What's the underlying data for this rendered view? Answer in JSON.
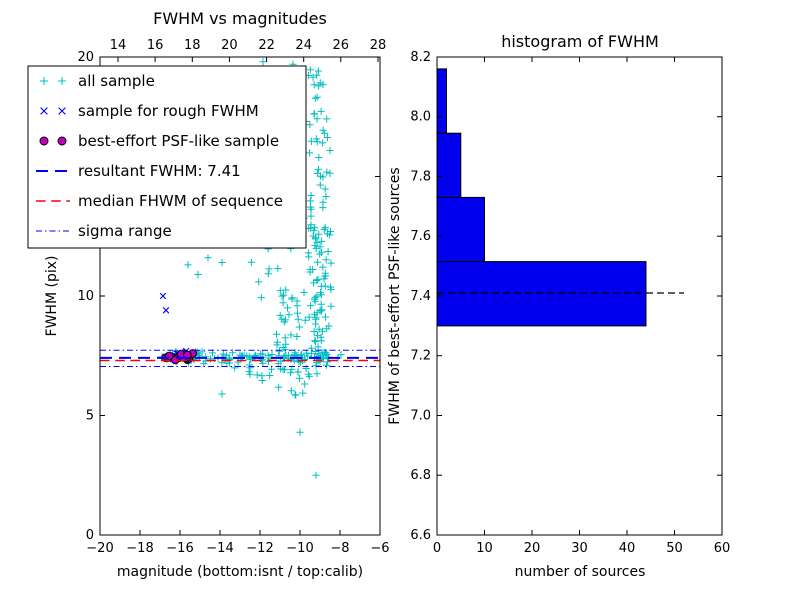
{
  "chart_data": [
    {
      "type": "scatter",
      "title": "FWHM vs magnitudes",
      "xlabel": "magnitude (bottom:isnt / top:calib)",
      "ylabel": "FWHM (pix)",
      "xlim": [
        -20,
        -6
      ],
      "ylim": [
        0,
        20
      ],
      "top_xlim": [
        13.03,
        28.11
      ],
      "xticks": {
        "values": [
          -20,
          -18,
          -16,
          -14,
          -12,
          -10,
          -8,
          -6
        ],
        "labels": [
          "−20",
          "−18",
          "−16",
          "−14",
          "−12",
          "−10",
          "−8",
          "−6"
        ]
      },
      "yticks": {
        "values": [
          0,
          5,
          10,
          15,
          20
        ],
        "labels": [
          "0",
          "5",
          "10",
          "15",
          "20"
        ]
      },
      "top_ticks": {
        "values": [
          14,
          16,
          18,
          20,
          22,
          24,
          26,
          28
        ],
        "labels": [
          "14",
          "16",
          "18",
          "20",
          "22",
          "24",
          "26",
          "28"
        ]
      },
      "series": [
        {
          "name": "all sample",
          "marker": "plus",
          "color": "#00bfbf",
          "clusters": [
            {
              "n": 115,
              "x_u": [
                -16.7,
                -8.55
              ],
              "y_g": [
                7.45,
                0.12
              ]
            },
            {
              "n": 22,
              "x_u": [
                -13.6,
                -8.8
              ],
              "y_u": [
                6.55,
                7.25
              ]
            },
            {
              "n": 7,
              "x_u": [
                -12.8,
                -9.0
              ],
              "y_u": [
                5.7,
                6.5
              ]
            },
            {
              "n": 85,
              "x_g": [
                -9.05,
                0.3
              ],
              "x_clip": [
                -9.9,
                -8.45
              ],
              "y_u": [
                7.0,
                13.2
              ]
            },
            {
              "n": 45,
              "x_g": [
                -9.1,
                0.32
              ],
              "x_clip": [
                -10.0,
                -8.5
              ],
              "y_u": [
                13.2,
                19.9
              ]
            },
            {
              "n": 28,
              "x_u": [
                -11.2,
                -9.8
              ],
              "y_u": [
                7.3,
                10.5
              ]
            },
            {
              "n": 10,
              "x_u": [
                -12.5,
                -10.2
              ],
              "y_u": [
                9.5,
                13.5
              ]
            }
          ],
          "points": [
            [
              -9.2,
              2.5
            ],
            [
              -10.0,
              4.3
            ],
            [
              -13.9,
              5.9
            ],
            [
              -15.6,
              11.3
            ],
            [
              -14.6,
              11.6
            ],
            [
              -13.9,
              11.4
            ],
            [
              -15.1,
              10.9
            ],
            [
              -11.85,
              19.8
            ],
            [
              -10.35,
              19.7
            ],
            [
              -8.1,
              7.4
            ],
            [
              -7.95,
              7.55
            ],
            [
              -16.9,
              7.45
            ],
            [
              -12.15,
              13.0
            ]
          ]
        },
        {
          "name": "sample for rough FWHM",
          "marker": "x",
          "color": "#0000ff",
          "clusters": [
            {
              "n": 13,
              "x_u": [
                -16.35,
                -15.35
              ],
              "y_g": [
                7.5,
                0.09
              ]
            }
          ],
          "points": [
            [
              -16.85,
              10.0
            ],
            [
              -16.7,
              9.4
            ]
          ]
        },
        {
          "name": "best-effort PSF-like sample",
          "marker": "circle",
          "color": "#bf00bf",
          "edge_color": "#000000",
          "clusters": [
            {
              "n": 24,
              "x_g": [
                -16.0,
                0.33
              ],
              "x_clip": [
                -16.75,
                -15.25
              ],
              "y_g": [
                7.46,
                0.06
              ]
            }
          ],
          "points": []
        }
      ],
      "hlines": [
        {
          "label": "resultant FWHM: 7.41",
          "y": 7.41,
          "color": "#0000ff",
          "style": "dashed",
          "width": 2
        },
        {
          "label": "median FHWM of sequence",
          "y": 7.3,
          "color": "#ff0000",
          "style": "dashed",
          "width": 1.6
        },
        {
          "label": "sigma range",
          "y": 7.73,
          "color": "#0000ff",
          "style": "dashdot",
          "width": 1
        },
        {
          "label": "sigma range",
          "y": 7.05,
          "color": "#0000ff",
          "style": "dashdot",
          "width": 1
        }
      ],
      "legend": [
        {
          "kind": "marker",
          "marker": "plus",
          "color": "#00bfbf",
          "label": "all sample"
        },
        {
          "kind": "marker",
          "marker": "x",
          "color": "#0000ff",
          "label": "sample for rough FWHM"
        },
        {
          "kind": "marker",
          "marker": "circle",
          "color": "#bf00bf",
          "edge_color": "#000000",
          "label": "best-effort PSF-like sample"
        },
        {
          "kind": "line",
          "style": "dashed",
          "color": "#0000ff",
          "width": 2,
          "label": "resultant FWHM: 7.41"
        },
        {
          "kind": "line",
          "style": "dashed",
          "color": "#ff0000",
          "width": 1.6,
          "label": "median FHWM of sequence"
        },
        {
          "kind": "line",
          "style": "dashdot",
          "color": "#0000ff",
          "width": 1,
          "label": "sigma range"
        }
      ]
    },
    {
      "type": "bar-horizontal",
      "title": "histogram of FWHM",
      "xlabel": "number of sources",
      "ylabel": "FWHM of best-effort PSF-like sources",
      "xlim": [
        0,
        60
      ],
      "ylim": [
        6.6,
        8.2
      ],
      "xticks": {
        "values": [
          0,
          10,
          20,
          30,
          40,
          50,
          60
        ],
        "labels": [
          "0",
          "10",
          "20",
          "30",
          "40",
          "50",
          "60"
        ]
      },
      "yticks": {
        "values": [
          6.6,
          6.8,
          7.0,
          7.2,
          7.4,
          7.6,
          7.8,
          8.0,
          8.2
        ],
        "labels": [
          "6.6",
          "6.8",
          "7.0",
          "7.2",
          "7.4",
          "7.6",
          "7.8",
          "8.0",
          "8.2"
        ]
      },
      "bins": {
        "edges": [
          7.3,
          7.515,
          7.73,
          7.945,
          8.16
        ],
        "counts": [
          44,
          10,
          5,
          2
        ]
      },
      "bar_color": "#0000ee",
      "bar_edge_color": "#000000",
      "median_line": {
        "y": 7.41,
        "x_start": 0,
        "x_end": 52,
        "color": "#000000",
        "style": "dashed"
      }
    }
  ]
}
